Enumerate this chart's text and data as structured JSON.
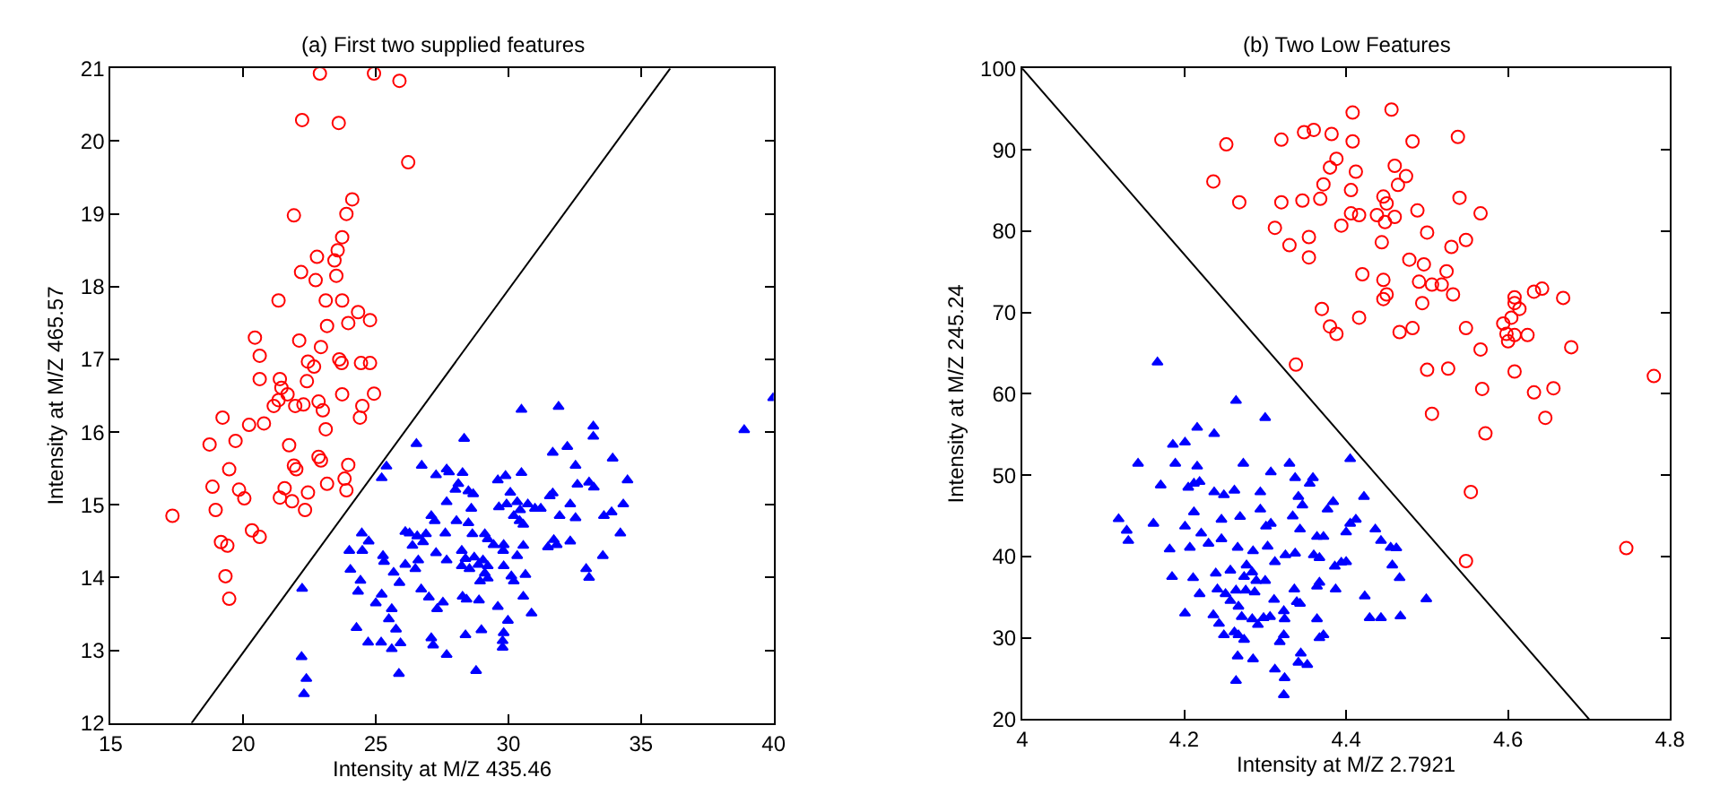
{
  "chart_data": [
    {
      "type": "scatter",
      "title": "(a) First two supplied features",
      "xlabel": "Intensity at M/Z 435.46",
      "ylabel": "Intensity at M/Z 465.57",
      "xlim": [
        15,
        40
      ],
      "ylim": [
        12,
        21
      ],
      "xticks": [
        15,
        20,
        25,
        30,
        35,
        40
      ],
      "yticks": [
        12,
        13,
        14,
        15,
        16,
        17,
        18,
        19,
        20,
        21
      ],
      "series": [
        {
          "color": "#ff0000",
          "marker": "circle",
          "x": [
            22.89,
            24.93,
            25.89,
            22.22,
            23.6,
            26.22,
            24.11,
            23.89,
            21.91,
            23.73,
            23.56,
            22.78,
            23.44,
            22.18,
            23.51,
            22.73,
            21.33,
            23.11,
            23.73,
            24.33,
            24.78,
            23.96,
            23.16,
            20.44,
            22.11,
            22.93,
            20.62,
            23.62,
            23.71,
            24.44,
            24.78,
            22.44,
            22.67,
            20.62,
            21.38,
            22.4,
            21.44,
            21.67,
            23.73,
            24.93,
            21.33,
            21.15,
            21.96,
            22.27,
            22.84,
            23.0,
            24.49,
            19.22,
            20.22,
            20.78,
            24.4,
            23.11,
            18.73,
            19.71,
            21.73,
            22.84,
            22.93,
            23.96,
            21.91,
            19.47,
            22.0,
            23.16,
            23.82,
            18.84,
            19.84,
            20.04,
            21.56,
            21.38,
            22.44,
            21.84,
            23.89,
            17.33,
            18.96,
            22.33,
            20.33,
            20.62,
            19.16,
            19.4,
            19.33,
            19.47
          ],
          "values": [
            20.93,
            20.93,
            20.83,
            20.29,
            20.25,
            19.71,
            19.2,
            19.0,
            18.98,
            18.68,
            18.5,
            18.41,
            18.36,
            18.2,
            18.15,
            18.09,
            17.81,
            17.81,
            17.81,
            17.65,
            17.54,
            17.5,
            17.46,
            17.3,
            17.26,
            17.17,
            17.05,
            17.0,
            16.95,
            16.95,
            16.95,
            16.97,
            16.9,
            16.73,
            16.73,
            16.7,
            16.61,
            16.52,
            16.52,
            16.53,
            16.44,
            16.36,
            16.36,
            16.38,
            16.42,
            16.3,
            16.36,
            16.2,
            16.1,
            16.12,
            16.2,
            16.04,
            15.83,
            15.88,
            15.82,
            15.66,
            15.61,
            15.55,
            15.54,
            15.49,
            15.49,
            15.29,
            15.36,
            15.25,
            15.21,
            15.09,
            15.23,
            15.1,
            15.17,
            15.05,
            15.2,
            14.85,
            14.93,
            14.93,
            14.65,
            14.56,
            14.49,
            14.44,
            14.02,
            13.71
          ]
        },
        {
          "color": "#0000ff",
          "marker": "triangle",
          "x": [
            39.98,
            38.89,
            31.89,
            30.49,
            33.2,
            33.2,
            28.33,
            26.53,
            33.93,
            31.67,
            32.22,
            32.53,
            34.49,
            32.6,
            33.04,
            33.22,
            31.67,
            31.56,
            32.33,
            31.93,
            32.53,
            33.6,
            33.89,
            34.33,
            34.22,
            33.56,
            32.93,
            33.04,
            26.73,
            25.4,
            25.22,
            27.27,
            27.67,
            27.76,
            28.27,
            28.11,
            28.0,
            28.49,
            28.67,
            29.6,
            29.89,
            30.49,
            30.07,
            29.64,
            29.93,
            30.33,
            30.44,
            30.73,
            31.0,
            31.22,
            30.2,
            30.42,
            30.56,
            27.67,
            28.6,
            28.04,
            28.49,
            27.09,
            27.22,
            26.11,
            26.27,
            26.56,
            26.89,
            26.78,
            26.38,
            27.62,
            28.64,
            29.11,
            29.22,
            29.44,
            29.82,
            30.56,
            31.49,
            31.71,
            31.82,
            32.33,
            24.47,
            24.73,
            24.0,
            24.49,
            25.27,
            25.31,
            26.11,
            26.6,
            27.27,
            27.67,
            28.24,
            28.38,
            28.71,
            28.87,
            29.04,
            29.22,
            28.53,
            28.24,
            29.8,
            29.82,
            30.33,
            24.04,
            25.67,
            26.49,
            25.89,
            28.93,
            29.22,
            29.11,
            30.11,
            30.2,
            30.64,
            24.42,
            24.33,
            25.22,
            25.0,
            25.6,
            26.71,
            27.0,
            27.53,
            27.31,
            28.27,
            28.42,
            28.89,
            29.6,
            30.56,
            30.87,
            25.49,
            25.76,
            24.27,
            24.71,
            25.2,
            25.6,
            25.93,
            27.09,
            27.16,
            27.67,
            28.38,
            28.98,
            29.82,
            29.78,
            29.78,
            29.98,
            22.22,
            22.2,
            22.38,
            22.29,
            25.87,
            28.78
          ],
          "values": [
            16.47,
            16.03,
            16.35,
            16.31,
            16.08,
            15.94,
            15.91,
            15.84,
            15.64,
            15.72,
            15.8,
            15.54,
            15.34,
            15.28,
            15.31,
            15.24,
            15.16,
            15.12,
            15.01,
            14.85,
            14.82,
            14.85,
            14.9,
            15.01,
            14.61,
            14.3,
            14.12,
            14.0,
            15.54,
            15.53,
            15.37,
            15.41,
            15.49,
            15.45,
            15.44,
            15.29,
            15.21,
            15.19,
            15.15,
            15.34,
            15.4,
            15.44,
            15.17,
            14.97,
            15.01,
            15.04,
            14.93,
            15.01,
            14.95,
            14.95,
            14.85,
            14.78,
            14.73,
            15.04,
            14.95,
            14.78,
            14.75,
            14.85,
            14.78,
            14.63,
            14.61,
            14.57,
            14.6,
            14.49,
            14.44,
            14.61,
            14.6,
            14.6,
            14.53,
            14.45,
            14.45,
            14.44,
            14.42,
            14.52,
            14.45,
            14.5,
            14.61,
            14.5,
            14.37,
            14.37,
            14.3,
            14.22,
            14.18,
            14.24,
            14.34,
            14.24,
            14.37,
            14.26,
            14.28,
            14.18,
            14.24,
            14.16,
            14.12,
            14.16,
            14.37,
            14.16,
            14.3,
            14.11,
            14.07,
            14.12,
            13.93,
            13.95,
            13.99,
            14.06,
            14.02,
            13.95,
            14.04,
            13.96,
            13.81,
            13.77,
            13.65,
            13.57,
            13.84,
            13.73,
            13.66,
            13.57,
            13.74,
            13.7,
            13.69,
            13.6,
            13.74,
            13.51,
            13.43,
            13.29,
            13.31,
            13.11,
            13.11,
            13.02,
            13.1,
            13.17,
            13.07,
            12.94,
            13.21,
            13.28,
            13.24,
            13.13,
            13.04,
            13.41,
            13.85,
            12.91,
            12.61,
            12.4,
            12.68,
            12.72
          ]
        },
        {
          "type": "line",
          "color": "#000000",
          "marker": "none",
          "x": [
            18.05,
            36.1
          ],
          "values": [
            12,
            21
          ]
        }
      ]
    },
    {
      "type": "scatter",
      "title": "(b) Two Low Features",
      "xlabel": "Intensity at M/Z 2.7921",
      "ylabel": "Intensity at M/Z 245.24",
      "xlim": [
        4,
        4.8
      ],
      "ylim": [
        20,
        100
      ],
      "xticks": [
        4,
        4.2,
        4.4,
        4.6,
        4.8
      ],
      "yticks": [
        20,
        30,
        40,
        50,
        60,
        70,
        80,
        90,
        100
      ],
      "series": [
        {
          "color": "#ff0000",
          "marker": "circle",
          "x": [
            4.408,
            4.456,
            4.252,
            4.32,
            4.348,
            4.36,
            4.382,
            4.408,
            4.482,
            4.538,
            4.236,
            4.268,
            4.32,
            4.346,
            4.368,
            4.372,
            4.38,
            4.388,
            4.412,
            4.406,
            4.446,
            4.45,
            4.46,
            4.464,
            4.474,
            4.54,
            4.566,
            4.312,
            4.33,
            4.354,
            4.354,
            4.394,
            4.406,
            4.416,
            4.438,
            4.448,
            4.46,
            4.488,
            4.5,
            4.53,
            4.548,
            4.444,
            4.478,
            4.496,
            4.524,
            4.42,
            4.446,
            4.49,
            4.506,
            4.518,
            4.532,
            4.494,
            4.45,
            4.446,
            4.416,
            4.37,
            4.38,
            4.388,
            4.466,
            4.482,
            4.548,
            4.566,
            4.594,
            4.608,
            4.608,
            4.614,
            4.604,
            4.598,
            4.608,
            4.624,
            4.6,
            4.632,
            4.642,
            4.668,
            4.678,
            4.338,
            4.5,
            4.526,
            4.608,
            4.78,
            4.568,
            4.632,
            4.656,
            4.506,
            4.646,
            4.572,
            4.554,
            4.746,
            4.548
          ],
          "values": [
            94.58,
            94.94,
            90.66,
            91.24,
            92.16,
            92.44,
            91.94,
            91.03,
            91.03,
            91.58,
            86.11,
            83.55,
            83.55,
            83.76,
            83.97,
            85.75,
            87.82,
            88.89,
            87.31,
            85.04,
            84.25,
            83.4,
            88.03,
            85.68,
            86.75,
            84.1,
            82.18,
            80.41,
            78.27,
            79.27,
            76.77,
            80.68,
            82.18,
            81.97,
            81.97,
            81.11,
            81.75,
            82.54,
            79.83,
            78.06,
            78.91,
            78.63,
            76.5,
            75.92,
            75.06,
            74.7,
            74.0,
            73.78,
            73.42,
            73.42,
            72.22,
            71.15,
            72.22,
            71.65,
            69.36,
            70.43,
            68.29,
            67.37,
            67.59,
            68.08,
            68.08,
            65.45,
            68.65,
            71.86,
            71.15,
            70.43,
            69.36,
            67.37,
            67.22,
            67.22,
            66.45,
            72.56,
            72.93,
            71.79,
            65.73,
            63.59,
            62.95,
            63.1,
            62.74,
            62.18,
            60.6,
            60.17,
            60.68,
            57.54,
            57.05,
            55.13,
            47.93,
            41.03,
            39.44
          ]
        },
        {
          "color": "#0000ff",
          "marker": "triangle",
          "x": [
            4.167,
            4.264,
            4.3,
            4.216,
            4.237,
            4.186,
            4.201,
            4.143,
            4.189,
            4.216,
            4.273,
            4.307,
            4.33,
            4.405,
            4.171,
            4.205,
            4.212,
            4.219,
            4.237,
            4.249,
            4.262,
            4.294,
            4.337,
            4.359,
            4.355,
            4.341,
            4.346,
            4.384,
            4.377,
            4.422,
            4.119,
            4.129,
            4.131,
            4.162,
            4.201,
            4.212,
            4.221,
            4.246,
            4.269,
            4.294,
            4.301,
            4.307,
            4.334,
            4.343,
            4.364,
            4.372,
            4.4,
            4.405,
            4.412,
            4.436,
            4.443,
            4.455,
            4.462,
            4.182,
            4.207,
            4.23,
            4.246,
            4.266,
            4.285,
            4.303,
            4.312,
            4.325,
            4.337,
            4.36,
            4.367,
            4.386,
            4.394,
            4.4,
            4.457,
            4.466,
            4.185,
            4.211,
            4.219,
            4.239,
            4.257,
            4.277,
            4.284,
            4.274,
            4.289,
            4.3,
            4.241,
            4.251,
            4.264,
            4.276,
            4.287,
            4.311,
            4.336,
            4.343,
            4.364,
            4.367,
            4.387,
            4.423,
            4.429,
            4.443,
            4.467,
            4.499,
            4.201,
            4.236,
            4.243,
            4.257,
            4.267,
            4.271,
            4.262,
            4.284,
            4.291,
            4.298,
            4.306,
            4.323,
            4.324,
            4.339,
            4.364,
            4.367,
            4.372,
            4.249,
            4.267,
            4.274,
            4.318,
            4.323,
            4.266,
            4.285,
            4.344,
            4.341,
            4.352,
            4.312,
            4.324,
            4.264,
            4.323
          ],
          "values": [
            63.87,
            59.16,
            57.05,
            55.85,
            55.08,
            53.75,
            54.03,
            51.43,
            51.43,
            51.08,
            51.43,
            50.37,
            51.43,
            51.99,
            48.76,
            48.48,
            48.97,
            49.18,
            47.91,
            47.56,
            48.12,
            47.91,
            49.67,
            49.67,
            48.97,
            47.35,
            46.3,
            46.72,
            45.8,
            47.35,
            44.61,
            43.2,
            41.94,
            44.05,
            43.7,
            45.45,
            42.85,
            44.54,
            44.89,
            45.8,
            43.7,
            44.05,
            44.96,
            43.35,
            42.43,
            42.43,
            42.99,
            44.05,
            44.54,
            43.35,
            41.94,
            41.1,
            41.03,
            40.89,
            41.1,
            41.59,
            42.15,
            41.1,
            40.67,
            41.24,
            39.34,
            40.18,
            40.39,
            40.18,
            39.83,
            38.78,
            39.27,
            39.34,
            38.92,
            37.37,
            37.51,
            37.37,
            35.4,
            37.93,
            38.29,
            38.92,
            38.07,
            37.51,
            37.02,
            37.02,
            35.97,
            35.4,
            35.83,
            35.83,
            35.61,
            34.7,
            35.97,
            34.21,
            36.32,
            36.81,
            35.97,
            35.12,
            32.45,
            32.45,
            32.66,
            34.77,
            33.01,
            32.8,
            31.75,
            34.56,
            33.86,
            32.59,
            30.7,
            32.31,
            31.61,
            32.45,
            32.59,
            33.3,
            32.31,
            34.42,
            32.31,
            29.99,
            30.34,
            30.34,
            30.34,
            29.78,
            29.5,
            30.34,
            27.74,
            27.39,
            28.1,
            26.97,
            26.69,
            26.13,
            25.07,
            24.72,
            22.97
          ]
        },
        {
          "type": "line",
          "color": "#000000",
          "marker": "none",
          "x": [
            4,
            4.7
          ],
          "values": [
            100,
            20
          ]
        }
      ]
    }
  ]
}
